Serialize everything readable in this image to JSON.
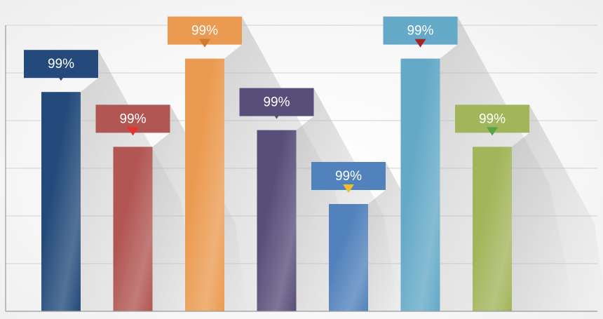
{
  "chart_data": {
    "type": "bar",
    "categories": [
      "",
      "",
      "",
      "",
      "",
      "",
      ""
    ],
    "values": [
      4.6,
      3.45,
      5.3,
      3.8,
      2.25,
      5.3,
      3.45
    ],
    "data_labels": [
      "99%",
      "99%",
      "99%",
      "99%",
      "99%",
      "99%",
      "99%"
    ],
    "ylim": [
      0,
      6
    ],
    "grid": true,
    "legend": "none",
    "colors": {
      "bars": [
        "#234a7a",
        "#b15653",
        "#eb9b51",
        "#594e7a",
        "#5282bc",
        "#64a9c7",
        "#a3b55b"
      ],
      "pointers": [
        "#234a7a",
        "#e8312d",
        "#d07a30",
        "#594e7a",
        "#f1bd2b",
        "#a72426",
        "#53a54a"
      ],
      "grid": "#d2d2d2",
      "axis": "#9a9a9a",
      "shadow": "#b4b4b4"
    }
  }
}
